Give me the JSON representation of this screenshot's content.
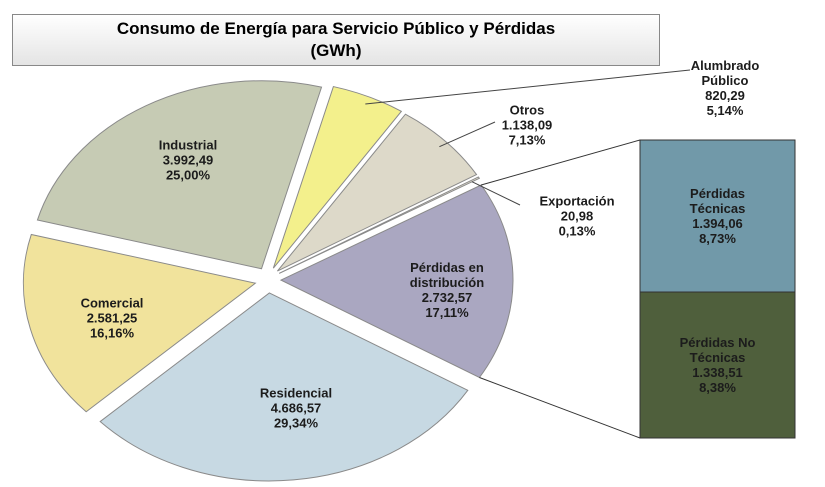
{
  "chart_data": {
    "type": "pie-of-bar",
    "title": "Consumo de Energía para Servicio Público y Pérdidas",
    "subtitle": "(GWh)",
    "categories": [
      "Alumbrado Público",
      "Otros",
      "Exportación",
      "Pérdidas en distribución",
      "Residencial",
      "Comercial",
      "Industrial"
    ],
    "values": [
      820.29,
      1138.09,
      20.98,
      2732.57,
      4686.57,
      2581.25,
      3992.49
    ],
    "value_labels": [
      "820,29",
      "1.138,09",
      "20,98",
      "2.732,57",
      "4.686,57",
      "2.581,25",
      "3.992,49"
    ],
    "percents": [
      5.14,
      7.13,
      0.13,
      17.11,
      29.34,
      16.16,
      25.0
    ],
    "percent_labels": [
      "5,14%",
      "7,13%",
      "0,13%",
      "17,11%",
      "29,34%",
      "16,16%",
      "25,00%"
    ],
    "colors": [
      "#f3f08c",
      "#ddd9c9",
      "#ddd9c9",
      "#aaa7c1",
      "#c7d9e3",
      "#f1e39c",
      "#c6cbb4"
    ],
    "breakdown": {
      "categories": [
        "Pérdidas Técnicas",
        "Pérdidas No Técnicas"
      ],
      "values": [
        1394.06,
        1338.51
      ],
      "value_labels": [
        "1.394,06",
        "1.338,51"
      ],
      "percents": [
        8.73,
        8.38
      ],
      "percent_labels": [
        "8,73%",
        "8,38%"
      ],
      "colors": [
        "#7199a9",
        "#4f5f3c"
      ]
    }
  }
}
